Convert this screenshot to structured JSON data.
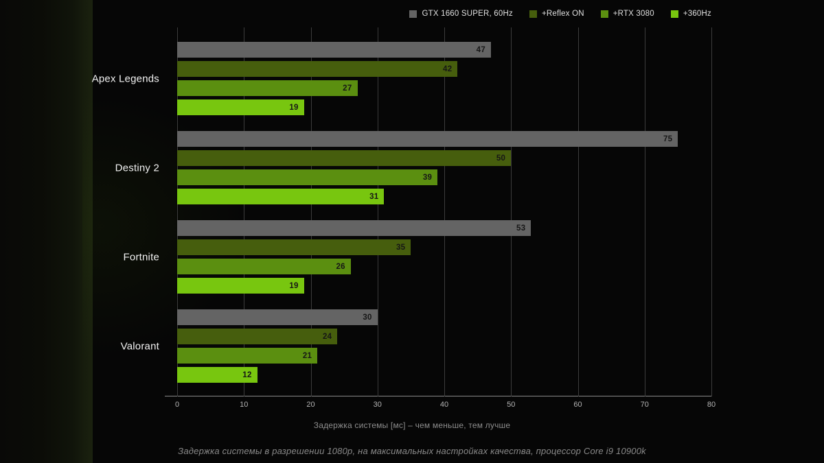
{
  "colors": {
    "background": "#060606",
    "grid": "#3c3c3c",
    "axis": "#8a8a8a",
    "bar_value_text": "#161616",
    "category_text": "#f2f2f2",
    "tick_text": "#b4b4b4"
  },
  "legend": [
    {
      "label": "GTX 1660 SUPER, 60Hz",
      "color": "#646464"
    },
    {
      "label": "+Reflex ON",
      "color": "#465e0d"
    },
    {
      "label": "+RTX 3080",
      "color": "#5b8f10"
    },
    {
      "label": "+360Hz",
      "color": "#78c60f"
    }
  ],
  "chart_data": {
    "type": "bar",
    "orientation": "horizontal",
    "title": "",
    "categories": [
      "Apex Legends",
      "Destiny 2",
      "Fortnite",
      "Valorant"
    ],
    "series": [
      {
        "name": "GTX 1660 SUPER, 60Hz",
        "color": "#646464",
        "values": [
          47,
          75,
          53,
          30
        ]
      },
      {
        "name": "+Reflex ON",
        "color": "#465e0d",
        "values": [
          42,
          50,
          35,
          24
        ]
      },
      {
        "name": "+RTX 3080",
        "color": "#5b8f10",
        "values": [
          27,
          39,
          26,
          21
        ]
      },
      {
        "name": "+360Hz",
        "color": "#78c60f",
        "values": [
          19,
          31,
          19,
          12
        ]
      }
    ],
    "x_ticks": [
      0,
      10,
      20,
      30,
      40,
      50,
      60,
      70,
      80
    ],
    "xlim": [
      0,
      80
    ],
    "grid": true,
    "legend_position": "top-right",
    "xlabel": "Задержка системы [мс] – чем меньше, тем лучше",
    "note": "Задержка системы в разрешении 1080p, на максимальных настройках качества, процессор Core i9 10900k"
  }
}
